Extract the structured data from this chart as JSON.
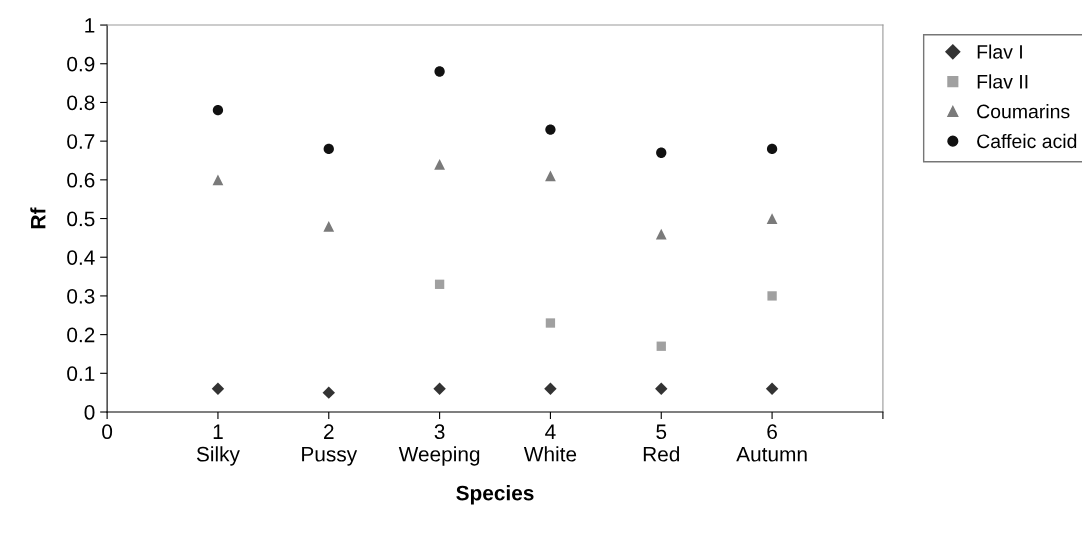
{
  "chart_data": {
    "type": "scatter",
    "xlabel": "Species",
    "ylabel": "Rf",
    "x": [
      1,
      2,
      3,
      4,
      5,
      6
    ],
    "series": [
      {
        "name": "Flav I",
        "color": "#333333",
        "marker": "diamond",
        "values": [
          0.06,
          0.05,
          0.06,
          0.06,
          0.06,
          0.06
        ]
      },
      {
        "name": "Flav II",
        "color": "#a0a0a0",
        "marker": "square",
        "values": [
          null,
          null,
          0.33,
          0.23,
          0.17,
          0.3
        ]
      },
      {
        "name": "Coumarins",
        "color": "#7a7a7a",
        "marker": "triangle",
        "values": [
          0.6,
          0.48,
          0.64,
          0.61,
          0.46,
          0.5
        ]
      },
      {
        "name": "Caffeic acid",
        "color": "#111111",
        "marker": "circle",
        "values": [
          0.78,
          0.68,
          0.88,
          0.73,
          0.67,
          0.68
        ]
      }
    ],
    "xlim": [
      0,
      7
    ],
    "xticks": [
      0,
      {
        "value": 1,
        "label": "1\nSilky"
      },
      {
        "value": 2,
        "label": "2\nPussy"
      },
      {
        "value": 3,
        "label": "3\nWeeping"
      },
      {
        "value": 4,
        "label": "4\nWhite"
      },
      {
        "value": 5,
        "label": "5\nRed"
      },
      {
        "value": 6,
        "label": "6\nAutumn"
      },
      {
        "value": 7,
        "label": null
      }
    ],
    "ylim": [
      0,
      1
    ],
    "yticks": [
      0,
      0.1,
      0.2,
      0.3,
      0.4,
      0.5,
      0.6,
      0.7,
      0.8,
      0.9,
      1
    ],
    "grid": false,
    "legend": "right"
  }
}
